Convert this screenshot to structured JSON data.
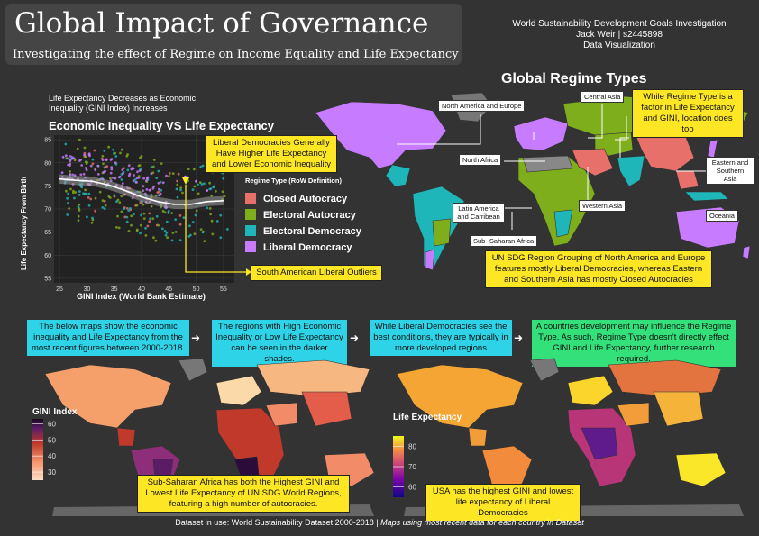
{
  "header": {
    "title": "Global Impact of Governance",
    "subtitle": "Investigating the effect of Regime on Income Equality and Life Expectancy",
    "credits_line1": "World Sustainability Development Goals Investigation",
    "credits_line2": "Jack Weir | s2445898",
    "credits_line3": "Data Visualization"
  },
  "chart_intro": {
    "line1": "Life Expectancy Decreases as  Economic",
    "line2": "Inequality (GINI Index) Increases"
  },
  "chart_data": [
    {
      "type": "scatter",
      "title": "Economic Inequality VS Life Expectancy",
      "xlabel": "GINI Index (World Bank Estimate)",
      "ylabel": "Life Expectancy From Birth",
      "xlim": [
        24,
        57
      ],
      "ylim": [
        54,
        86
      ],
      "x_ticks": [
        25,
        30,
        35,
        40,
        45,
        50,
        55
      ],
      "y_ticks": [
        55,
        60,
        65,
        70,
        75,
        80,
        85
      ],
      "grid": true,
      "legend_title": "Regime Type (RoW Definition)",
      "legend_position": "right",
      "series": [
        {
          "name": "Closed Autocracy",
          "color": "#e8706a"
        },
        {
          "name": "Electoral Autocracy",
          "color": "#7fae1c"
        },
        {
          "name": "Electoral Democracy",
          "color": "#1fb6b9"
        },
        {
          "name": "Liberal Democracy",
          "color": "#c77cff"
        }
      ],
      "trend": {
        "x": [
          25,
          28,
          31,
          34,
          37,
          40,
          43,
          46,
          49,
          52,
          55
        ],
        "y": [
          76.5,
          76.2,
          76.0,
          75.2,
          74.0,
          72.6,
          71.6,
          71.0,
          71.0,
          71.6,
          71.8
        ]
      }
    },
    {
      "type": "heatmap",
      "title": "GINI Index",
      "scale_ticks": [
        30,
        40,
        50,
        60
      ],
      "scale_min": 25,
      "scale_max": 63
    },
    {
      "type": "heatmap",
      "title": "Life Expectancy",
      "scale_ticks": [
        60,
        70,
        80
      ],
      "scale_min": 55,
      "scale_max": 85
    }
  ],
  "regime_map": {
    "title": "Global Regime Types",
    "labels": {
      "north_america_europe": "North America and Europe",
      "central_asia": "Central Asia",
      "north_africa": "North Africa",
      "eastern_southern_asia": "Eastern and Southern Asia",
      "western_asia": "Western Asia",
      "latin_america": "Latin America and Carribean",
      "sub_saharan_africa": "Sub -Saharan Africa",
      "oceania": "Oceania"
    }
  },
  "callouts": {
    "liberal_democracies": "Liberal Democracies Generally Have Higher Life Expectancy and Lower Economic Inequality",
    "south_american_outliers": "South American Liberal Outliers",
    "location": "While Regime Type is a factor in Life Expectancy and GINI, location does too",
    "un_sdg": "UN SDG Region Grouping of North America and Europe features mostly Liberal Democracies, whereas Eastern and Southern Asia has mostly Closed Autocracies",
    "maps_intro": "The below maps show the economic inequality and Life Expectancy from the most recent figures between 2000-2018.",
    "darker_shades": "The regions with High Economic Inequality or Low Life Expectancy can be seen in the darker shades.",
    "developed": "While Liberal Democracies see the best conditions, they are typically in more developed regions",
    "development": "A countries development may influence the Regime Type. As such, Regime Type doesn't directly effect GINI and Life Expectancy, further research required.",
    "sub_saharan": "Sub-Saharan Africa has both the Highest GINI and Lowest Life Expectancy of UN SDG World Regions, featuring a high number of autocracies.",
    "usa": "USA has the highest GINI and lowest life expectancy of Liberal Democracies"
  },
  "footer": {
    "dataset": "Dataset in use: World Sustainability Dataset 2000-2018",
    "note": "| Maps using most recent data for each country in Dataset"
  }
}
